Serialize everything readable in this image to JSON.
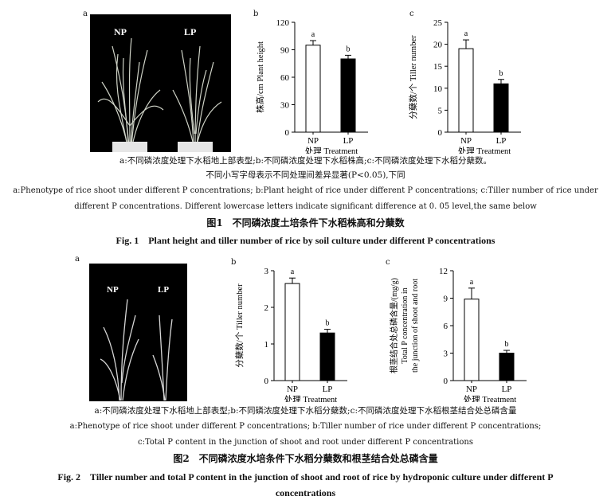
{
  "fig1": {
    "panel_labels": {
      "a": "a",
      "b": "b",
      "c": "c"
    },
    "photo_labels": {
      "np": "NP",
      "lp": "LP"
    },
    "caption_cn_line1": "a:不同磷浓度处理下水稻地上部表型;b:不同磷浓度处理下水稻株高;c:不同磷浓度处理下水稻分蘖数。",
    "caption_cn_line2": "不同小写字母表示不同处理间差异显著(P<0.05),下同",
    "caption_en_line1": "a:Phenotype of rice shoot under different P concentrations; b:Plant height of rice under different P concentrations; c:Tiller number of rice under",
    "caption_en_line2": "different P concentrations. Different lowercase letters indicate significant difference at 0. 05 level,the same below",
    "title_cn": "图1　不同磷浓度土培条件下水稻株高和分蘖数",
    "title_en": "Fig. 1　Plant height and tiller number of rice by soil culture under different P concentrations"
  },
  "fig2": {
    "panel_labels": {
      "a": "a",
      "b": "b",
      "c": "c"
    },
    "photo_labels": {
      "np": "NP",
      "lp": "LP"
    },
    "caption_cn_line1": "a:不同磷浓度处理下水稻地上部表型;b:不同磷浓度处理下水稻分蘖数;c:不同磷浓度处理下水稻根茎结合处总磷含量",
    "caption_en_line1": "a:Phenotype of rice shoot under different P concentrations; b:Tiller number of rice under different P concentrations;",
    "caption_en_line2": "c:Total P content in the junction of shoot and root under different P concentrations",
    "title_cn": "图2　不同磷浓度水培条件下水稻分蘖数和根茎结合处总磷含量",
    "title_en_line1": "Fig. 2　Tiller number and total P content in the junction of shoot and root of rice by hydroponic culture under different P",
    "title_en_line2": "concentrations"
  },
  "colors": {
    "np_fill": "#ffffff",
    "lp_fill": "#000000",
    "photo_bg": "#000000"
  },
  "chart_data": [
    {
      "id": "fig1b",
      "type": "bar",
      "categories": [
        "NP",
        "LP"
      ],
      "values": [
        95,
        80
      ],
      "errors": [
        5,
        4
      ],
      "sig_letters": [
        "a",
        "b"
      ],
      "xlabel": "处理 Treatment",
      "ylabel": "株高/cm Plant height",
      "ylim": [
        0,
        120
      ],
      "yticks": [
        0,
        30,
        60,
        90,
        120
      ]
    },
    {
      "id": "fig1c",
      "type": "bar",
      "categories": [
        "NP",
        "LP"
      ],
      "values": [
        19,
        11
      ],
      "errors": [
        2,
        1
      ],
      "sig_letters": [
        "a",
        "b"
      ],
      "xlabel": "处理 Treatment",
      "ylabel": "分蘖数/个 Tiller number",
      "ylim": [
        0,
        25
      ],
      "yticks": [
        0,
        5,
        10,
        15,
        20,
        25
      ]
    },
    {
      "id": "fig2b",
      "type": "bar",
      "categories": [
        "NP",
        "LP"
      ],
      "values": [
        2.65,
        1.3
      ],
      "errors": [
        0.15,
        0.1
      ],
      "sig_letters": [
        "a",
        "b"
      ],
      "xlabel": "处理 Treatment",
      "ylabel": "分蘖数/个 Tiller number",
      "ylim": [
        0,
        3
      ],
      "yticks": [
        0,
        1,
        2,
        3
      ]
    },
    {
      "id": "fig2c",
      "type": "bar",
      "categories": [
        "NP",
        "LP"
      ],
      "values": [
        8.9,
        3.0
      ],
      "errors": [
        1.2,
        0.3
      ],
      "sig_letters": [
        "a",
        "b"
      ],
      "xlabel": "处理 Treatment",
      "ylabel_lines": [
        "根茎结合处总磷含量/(mg/g)",
        "Total P concentration in",
        "the junction of shoot and root"
      ],
      "ylim": [
        0,
        12
      ],
      "yticks": [
        0,
        3,
        6,
        9,
        12
      ]
    }
  ]
}
